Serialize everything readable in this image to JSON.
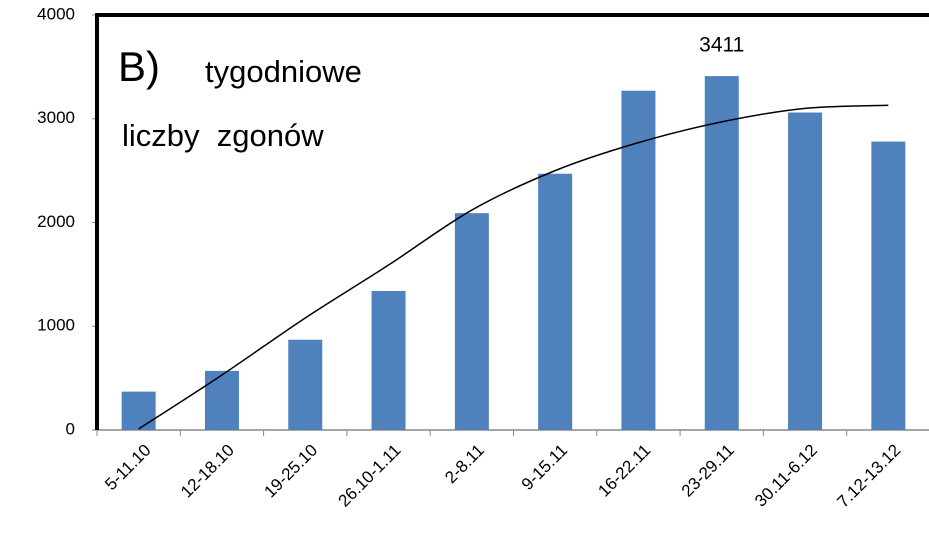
{
  "chart_data": {
    "type": "bar",
    "title": "B)",
    "subtitle": [
      "tygodniowe",
      "liczby  zgonów"
    ],
    "categories": [
      "5-11.10",
      "12-18.10",
      "19-25.10",
      "26.10-1.11",
      "2-8.11",
      "9-15.11",
      "16-22.11",
      "23-29.11",
      "30.11-6.12",
      "7.12-13.12"
    ],
    "series": [
      {
        "color": "#4f81bd",
        "values": [
          370,
          570,
          870,
          1340,
          2090,
          2470,
          3270,
          3411,
          3060,
          2780
        ],
        "value_labels": [
          null,
          null,
          null,
          null,
          null,
          null,
          null,
          "3411",
          null,
          null
        ]
      },
      {
        "type": "line",
        "color": "#000000",
        "values": [
          10,
          530,
          1080,
          1590,
          2120,
          2500,
          2770,
          2970,
          3100,
          3130
        ]
      }
    ],
    "ylim": [
      0,
      4000
    ],
    "yticks": [
      0,
      1000,
      2000,
      3000,
      4000
    ],
    "grid": false
  }
}
